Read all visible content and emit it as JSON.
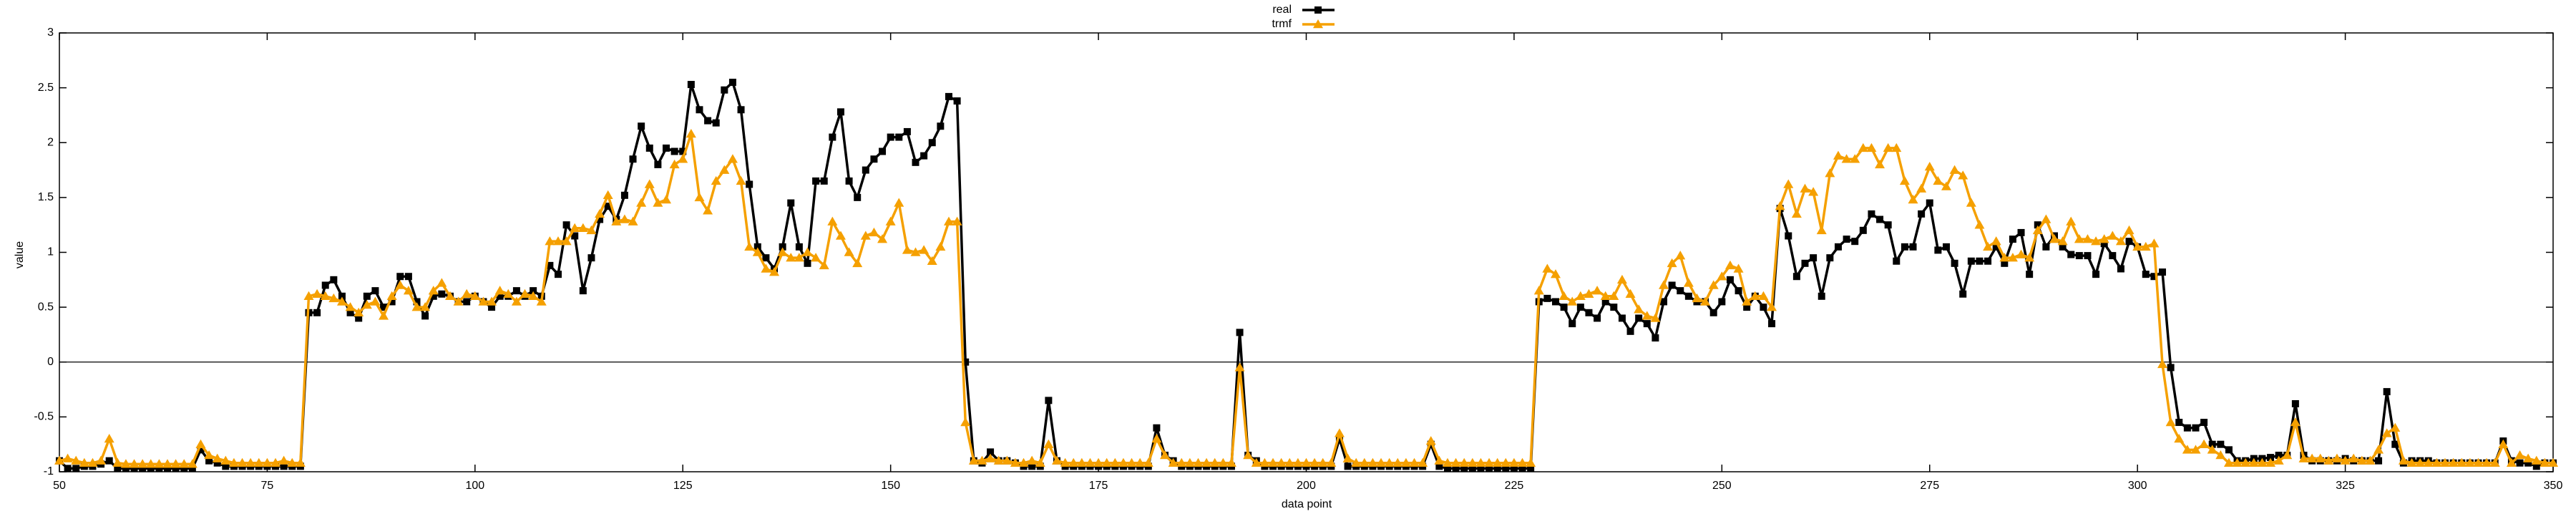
{
  "chart_data": {
    "type": "line",
    "xlabel": "data point",
    "ylabel": "value",
    "x": [
      50,
      51,
      52,
      53,
      54,
      55,
      56,
      57,
      58,
      59,
      60,
      61,
      62,
      63,
      64,
      65,
      66,
      67,
      68,
      69,
      70,
      71,
      72,
      73,
      74,
      75,
      76,
      77,
      78,
      79,
      80,
      81,
      82,
      83,
      84,
      85,
      86,
      87,
      88,
      89,
      90,
      91,
      92,
      93,
      94,
      95,
      96,
      97,
      98,
      99,
      100,
      101,
      102,
      103,
      104,
      105,
      106,
      107,
      108,
      109,
      110,
      111,
      112,
      113,
      114,
      115,
      116,
      117,
      118,
      119,
      120,
      121,
      122,
      123,
      124,
      125,
      126,
      127,
      128,
      129,
      130,
      131,
      132,
      133,
      134,
      135,
      136,
      137,
      138,
      139,
      140,
      141,
      142,
      143,
      144,
      145,
      146,
      147,
      148,
      149,
      150,
      151,
      152,
      153,
      154,
      155,
      156,
      157,
      158,
      159,
      160,
      161,
      162,
      163,
      164,
      165,
      166,
      167,
      168,
      169,
      170,
      171,
      172,
      173,
      174,
      175,
      176,
      177,
      178,
      179,
      180,
      181,
      182,
      183,
      184,
      185,
      186,
      187,
      188,
      189,
      190,
      191,
      192,
      193,
      194,
      195,
      196,
      197,
      198,
      199,
      200,
      201,
      202,
      203,
      204,
      205,
      206,
      207,
      208,
      209,
      210,
      211,
      212,
      213,
      214,
      215,
      216,
      217,
      218,
      219,
      220,
      221,
      222,
      223,
      224,
      225,
      226,
      227,
      228,
      229,
      230,
      231,
      232,
      233,
      234,
      235,
      236,
      237,
      238,
      239,
      240,
      241,
      242,
      243,
      244,
      245,
      246,
      247,
      248,
      249,
      250,
      251,
      252,
      253,
      254,
      255,
      256,
      257,
      258,
      259,
      260,
      261,
      262,
      263,
      264,
      265,
      266,
      267,
      268,
      269,
      270,
      271,
      272,
      273,
      274,
      275,
      276,
      277,
      278,
      279,
      280,
      281,
      282,
      283,
      284,
      285,
      286,
      287,
      288,
      289,
      290,
      291,
      292,
      293,
      294,
      295,
      296,
      297,
      298,
      299,
      300,
      301,
      302,
      303,
      304,
      305,
      306,
      307,
      308,
      309,
      310,
      311,
      312,
      313,
      314,
      315,
      316,
      317,
      318,
      319,
      320,
      321,
      322,
      323,
      324,
      325,
      326,
      327,
      328,
      329,
      330,
      331,
      332,
      333,
      334,
      335,
      336,
      337,
      338,
      339,
      340,
      341,
      342,
      343,
      344,
      345,
      346,
      347,
      348,
      349,
      350
    ],
    "series": [
      {
        "name": "real",
        "color": "#000000",
        "marker": "square",
        "values": [
          -0.9,
          -0.97,
          -0.97,
          -0.95,
          -0.95,
          -0.93,
          -0.9,
          -0.97,
          -0.97,
          -0.97,
          -0.97,
          -0.97,
          -0.97,
          -0.97,
          -0.97,
          -0.97,
          -0.97,
          -0.8,
          -0.9,
          -0.92,
          -0.95,
          -0.95,
          -0.95,
          -0.95,
          -0.95,
          -0.95,
          -0.95,
          -0.95,
          -0.95,
          -0.95,
          0.45,
          0.45,
          0.7,
          0.75,
          0.6,
          0.45,
          0.4,
          0.6,
          0.65,
          0.5,
          0.55,
          0.78,
          0.78,
          0.55,
          0.42,
          0.6,
          0.62,
          0.6,
          0.55,
          0.55,
          0.6,
          0.55,
          0.5,
          0.6,
          0.6,
          0.65,
          0.6,
          0.65,
          0.6,
          0.88,
          0.8,
          1.25,
          1.15,
          0.65,
          0.95,
          1.3,
          1.42,
          1.3,
          1.52,
          1.85,
          2.15,
          1.95,
          1.8,
          1.95,
          1.92,
          1.92,
          2.53,
          2.3,
          2.2,
          2.18,
          2.48,
          2.55,
          2.3,
          1.62,
          1.05,
          0.95,
          0.85,
          1.05,
          1.45,
          1.05,
          0.9,
          1.65,
          1.65,
          2.05,
          2.28,
          1.65,
          1.5,
          1.75,
          1.85,
          1.92,
          2.05,
          2.05,
          2.1,
          1.82,
          1.88,
          2.0,
          2.15,
          2.42,
          2.38,
          0.0,
          -0.9,
          -0.92,
          -0.82,
          -0.9,
          -0.9,
          -0.92,
          -0.95,
          -0.95,
          -0.95,
          -0.35,
          -0.9,
          -0.95,
          -0.95,
          -0.95,
          -0.95,
          -0.95,
          -0.95,
          -0.95,
          -0.95,
          -0.95,
          -0.95,
          -0.95,
          -0.6,
          -0.85,
          -0.9,
          -0.95,
          -0.95,
          -0.95,
          -0.95,
          -0.95,
          -0.95,
          -0.95,
          0.27,
          -0.85,
          -0.9,
          -0.95,
          -0.95,
          -0.95,
          -0.95,
          -0.95,
          -0.95,
          -0.95,
          -0.95,
          -0.95,
          -0.7,
          -0.95,
          -0.95,
          -0.95,
          -0.95,
          -0.95,
          -0.95,
          -0.95,
          -0.95,
          -0.95,
          -0.95,
          -0.75,
          -0.95,
          -0.97,
          -0.97,
          -0.97,
          -0.97,
          -0.97,
          -0.97,
          -0.97,
          -0.97,
          -0.97,
          -0.97,
          -0.97,
          0.55,
          0.58,
          0.55,
          0.5,
          0.35,
          0.5,
          0.45,
          0.4,
          0.55,
          0.5,
          0.4,
          0.28,
          0.4,
          0.35,
          0.22,
          0.55,
          0.7,
          0.65,
          0.6,
          0.55,
          0.55,
          0.45,
          0.55,
          0.75,
          0.65,
          0.5,
          0.6,
          0.5,
          0.35,
          1.4,
          1.15,
          0.78,
          0.9,
          0.95,
          0.6,
          0.95,
          1.05,
          1.12,
          1.1,
          1.2,
          1.35,
          1.3,
          1.25,
          0.92,
          1.05,
          1.05,
          1.35,
          1.45,
          1.02,
          1.05,
          0.9,
          0.62,
          0.92,
          0.92,
          0.92,
          1.05,
          0.9,
          1.12,
          1.18,
          0.8,
          1.25,
          1.05,
          1.15,
          1.05,
          0.98,
          0.97,
          0.97,
          0.8,
          1.08,
          0.97,
          0.85,
          1.1,
          1.05,
          0.8,
          0.78,
          0.82,
          -0.05,
          -0.55,
          -0.6,
          -0.6,
          -0.55,
          -0.75,
          -0.75,
          -0.8,
          -0.9,
          -0.9,
          -0.88,
          -0.88,
          -0.87,
          -0.85,
          -0.85,
          -0.38,
          -0.85,
          -0.9,
          -0.9,
          -0.9,
          -0.9,
          -0.88,
          -0.9,
          -0.9,
          -0.9,
          -0.9,
          -0.27,
          -0.75,
          -0.92,
          -0.9,
          -0.9,
          -0.9,
          -0.92,
          -0.92,
          -0.92,
          -0.92,
          -0.92,
          -0.92,
          -0.92,
          -0.92,
          -0.72,
          -0.9,
          -0.92,
          -0.92,
          -0.95,
          -0.92,
          -0.92
        ]
      },
      {
        "name": "trmf",
        "color": "#f5a000",
        "marker": "triangle",
        "values": [
          -0.9,
          -0.88,
          -0.9,
          -0.92,
          -0.92,
          -0.9,
          -0.7,
          -0.92,
          -0.93,
          -0.93,
          -0.93,
          -0.93,
          -0.93,
          -0.93,
          -0.93,
          -0.93,
          -0.93,
          -0.75,
          -0.85,
          -0.88,
          -0.9,
          -0.92,
          -0.92,
          -0.92,
          -0.92,
          -0.92,
          -0.92,
          -0.9,
          -0.92,
          -0.92,
          0.6,
          0.62,
          0.6,
          0.58,
          0.55,
          0.5,
          0.45,
          0.52,
          0.55,
          0.42,
          0.6,
          0.7,
          0.65,
          0.5,
          0.5,
          0.65,
          0.72,
          0.6,
          0.55,
          0.62,
          0.6,
          0.55,
          0.55,
          0.65,
          0.62,
          0.55,
          0.62,
          0.6,
          0.55,
          1.1,
          1.1,
          1.1,
          1.22,
          1.22,
          1.2,
          1.35,
          1.52,
          1.28,
          1.3,
          1.28,
          1.45,
          1.62,
          1.45,
          1.48,
          1.8,
          1.85,
          2.08,
          1.5,
          1.38,
          1.65,
          1.75,
          1.85,
          1.65,
          1.05,
          1.0,
          0.85,
          0.82,
          1.0,
          0.95,
          0.95,
          1.0,
          0.95,
          0.88,
          1.28,
          1.15,
          1.0,
          0.9,
          1.15,
          1.18,
          1.12,
          1.28,
          1.45,
          1.02,
          1.0,
          1.02,
          0.92,
          1.05,
          1.28,
          1.28,
          -0.55,
          -0.9,
          -0.9,
          -0.88,
          -0.9,
          -0.9,
          -0.92,
          -0.92,
          -0.9,
          -0.92,
          -0.75,
          -0.9,
          -0.92,
          -0.92,
          -0.92,
          -0.92,
          -0.92,
          -0.92,
          -0.92,
          -0.92,
          -0.92,
          -0.92,
          -0.92,
          -0.7,
          -0.85,
          -0.92,
          -0.92,
          -0.92,
          -0.92,
          -0.92,
          -0.92,
          -0.92,
          -0.92,
          -0.05,
          -0.85,
          -0.92,
          -0.92,
          -0.92,
          -0.92,
          -0.92,
          -0.92,
          -0.92,
          -0.92,
          -0.92,
          -0.92,
          -0.65,
          -0.88,
          -0.92,
          -0.92,
          -0.92,
          -0.92,
          -0.92,
          -0.92,
          -0.92,
          -0.92,
          -0.92,
          -0.72,
          -0.9,
          -0.92,
          -0.92,
          -0.92,
          -0.92,
          -0.92,
          -0.92,
          -0.92,
          -0.92,
          -0.92,
          -0.92,
          -0.92,
          0.65,
          0.85,
          0.8,
          0.6,
          0.55,
          0.6,
          0.62,
          0.65,
          0.6,
          0.6,
          0.75,
          0.62,
          0.48,
          0.42,
          0.4,
          0.7,
          0.9,
          0.97,
          0.72,
          0.58,
          0.55,
          0.7,
          0.78,
          0.88,
          0.85,
          0.55,
          0.6,
          0.6,
          0.5,
          1.42,
          1.62,
          1.35,
          1.58,
          1.55,
          1.2,
          1.72,
          1.88,
          1.85,
          1.85,
          1.95,
          1.95,
          1.8,
          1.95,
          1.95,
          1.65,
          1.48,
          1.58,
          1.78,
          1.65,
          1.6,
          1.75,
          1.7,
          1.45,
          1.25,
          1.05,
          1.1,
          0.95,
          0.95,
          0.98,
          0.95,
          1.2,
          1.3,
          1.12,
          1.1,
          1.28,
          1.12,
          1.12,
          1.1,
          1.12,
          1.15,
          1.1,
          1.2,
          1.05,
          1.05,
          1.08,
          -0.02,
          -0.55,
          -0.7,
          -0.8,
          -0.8,
          -0.75,
          -0.8,
          -0.85,
          -0.92,
          -0.92,
          -0.92,
          -0.92,
          -0.92,
          -0.92,
          -0.9,
          -0.85,
          -0.55,
          -0.88,
          -0.88,
          -0.88,
          -0.9,
          -0.88,
          -0.9,
          -0.88,
          -0.9,
          -0.9,
          -0.8,
          -0.65,
          -0.6,
          -0.9,
          -0.92,
          -0.92,
          -0.92,
          -0.92,
          -0.92,
          -0.92,
          -0.92,
          -0.92,
          -0.92,
          -0.92,
          -0.92,
          -0.75,
          -0.92,
          -0.85,
          -0.88,
          -0.9,
          -0.92,
          -0.92
        ]
      }
    ],
    "xlim": [
      50,
      350
    ],
    "xticks": [
      50,
      75,
      100,
      125,
      150,
      175,
      200,
      225,
      250,
      275,
      300,
      325,
      350
    ],
    "ylim": [
      -1,
      3
    ],
    "yticks": [
      -1,
      -0.5,
      0,
      0.5,
      1,
      1.5,
      2,
      2.5,
      3
    ],
    "grid": false,
    "zeroaxis": true,
    "legend": "top-center"
  }
}
